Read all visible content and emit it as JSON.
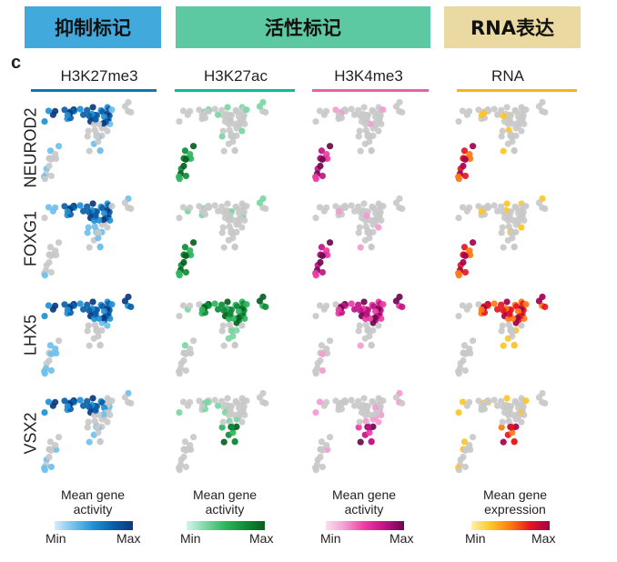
{
  "banners": [
    {
      "label": "抑制标记",
      "color": "#41a9dc"
    },
    {
      "label": "活性标记",
      "color": "#5dc9a3"
    },
    {
      "label": "RNA表达",
      "color": "#ead9a0"
    }
  ],
  "panel_letter": "c",
  "columns": [
    {
      "title": "H3K27me3",
      "color": "#0f75bb",
      "gradient": [
        "#d6ecfa",
        "#6fc0ec",
        "#1f8fd6",
        "#0b5fa7",
        "#0b3a7e"
      ]
    },
    {
      "title": "H3K27ac",
      "color": "#12b89c",
      "gradient": [
        "#d8f3ea",
        "#7ad6a3",
        "#2cb55d",
        "#108c3a",
        "#07601f"
      ]
    },
    {
      "title": "H3K4me3",
      "color": "#ea5fa7",
      "gradient": [
        "#fbe0ef",
        "#f49ad0",
        "#ee3aa3",
        "#c01386",
        "#6a0a4f"
      ]
    },
    {
      "title": "RNA",
      "color": "#f8b31b",
      "gradient": [
        "#fff1a8",
        "#ffc526",
        "#ff7a12",
        "#e6161e",
        "#a3004d"
      ]
    }
  ],
  "rows": [
    "NEUROD2",
    "FOXG1",
    "LHX5",
    "VSX2"
  ],
  "legends": [
    {
      "title_line1": "Mean gene",
      "title_line2": "activity",
      "min": "Min",
      "max": "Max"
    },
    {
      "title_line1": "Mean gene",
      "title_line2": "activity",
      "min": "Min",
      "max": "Max"
    },
    {
      "title_line1": "Mean gene",
      "title_line2": "activity",
      "min": "Min",
      "max": "Max"
    },
    {
      "title_line1": "Mean gene",
      "title_line2": "expression",
      "min": "Min",
      "max": "Max"
    }
  ],
  "colors": {
    "background_cell": "#c9c9c9",
    "text": "#231f20"
  }
}
